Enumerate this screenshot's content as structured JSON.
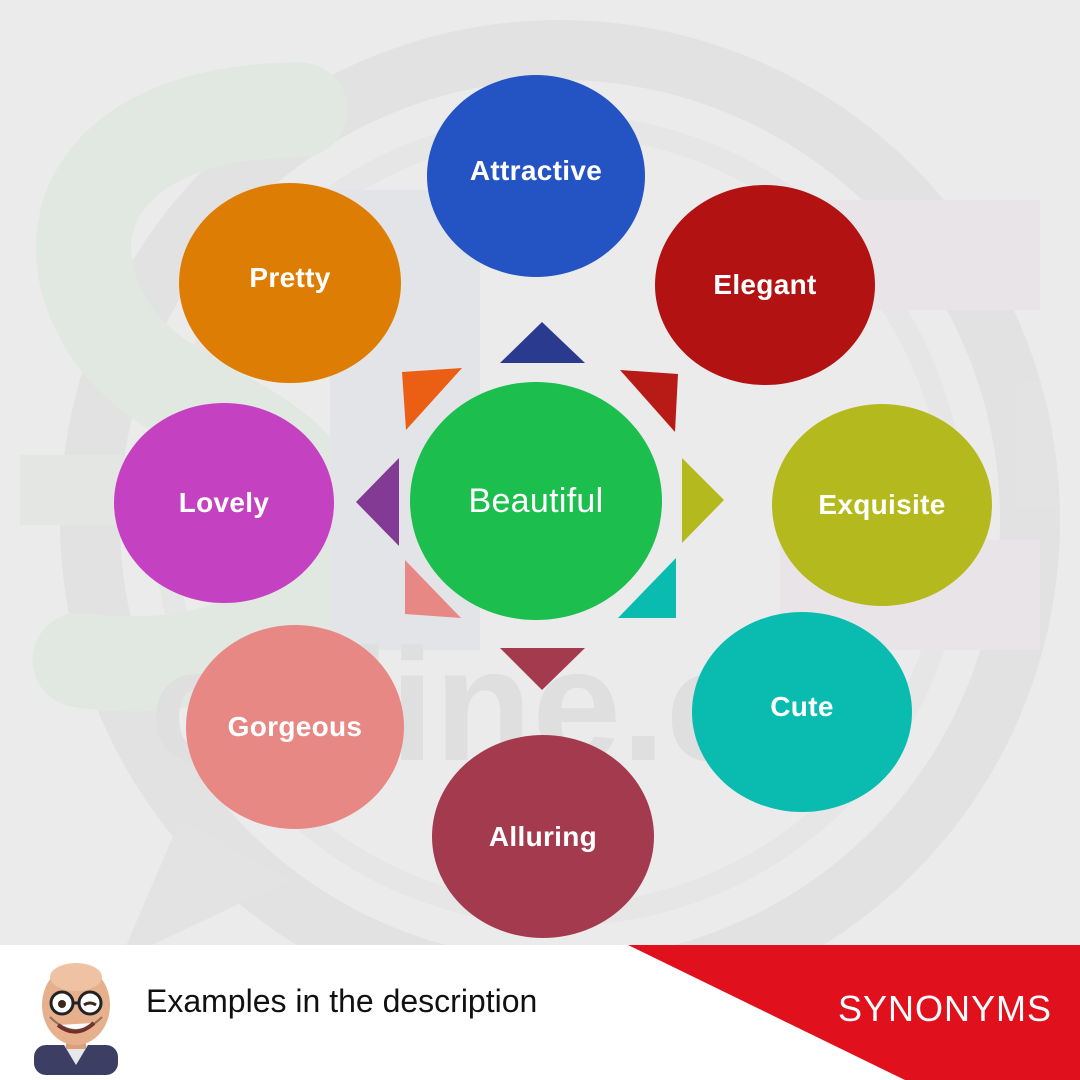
{
  "diagram": {
    "center": {
      "label": "Beautiful",
      "color": "#1cbf4e"
    },
    "synonyms": [
      {
        "label": "Attractive",
        "color": "#2453c4"
      },
      {
        "label": "Elegant",
        "color": "#b31212"
      },
      {
        "label": "Exquisite",
        "color": "#b4ba1e"
      },
      {
        "label": "Cute",
        "color": "#0abcb0"
      },
      {
        "label": "Alluring",
        "color": "#a43a4e"
      },
      {
        "label": "Gorgeous",
        "color": "#e88884"
      },
      {
        "label": "Lovely",
        "color": "#c441c2"
      },
      {
        "label": "Pretty",
        "color": "#dd7d03"
      }
    ],
    "arrow_colors": {
      "top": "#2a3a8e",
      "top_right": "#b81b16",
      "right": "#b4ba1e",
      "bottom_right": "#0abcb0",
      "bottom": "#a43a4e",
      "bottom_left": "#e88884",
      "left": "#833a95",
      "top_left": "#ea5f13"
    }
  },
  "footer": {
    "caption": "Examples in the description",
    "tag": "SYNONYMS",
    "accent_color": "#e1101d",
    "avatar_icon": "memoji-avatar-icon"
  }
}
